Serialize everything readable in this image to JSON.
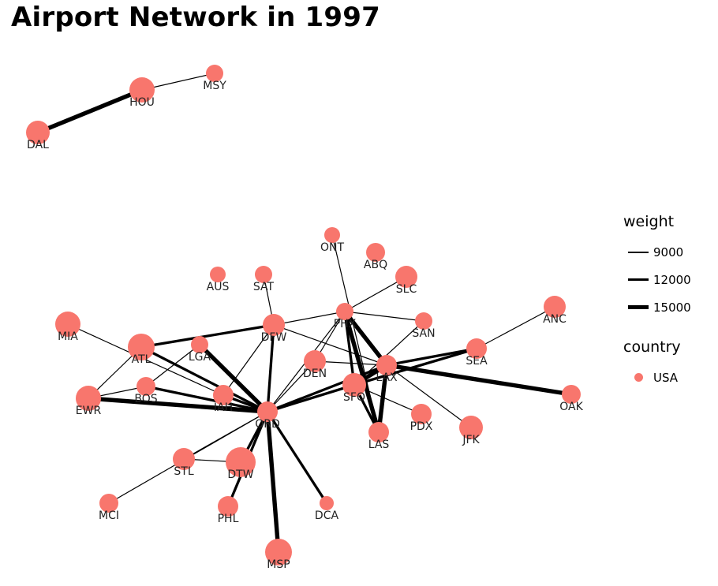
{
  "title": "Airport Network in 1997",
  "colors": {
    "node": "#f8766d",
    "edge": "#000000"
  },
  "legend": {
    "weight_title": "weight",
    "weight_items": [
      {
        "label": "9000",
        "value": 9000
      },
      {
        "label": "12000",
        "value": 12000
      },
      {
        "label": "15000",
        "value": 15000
      }
    ],
    "country_title": "country",
    "country_items": [
      {
        "label": "USA",
        "color": "#f8766d"
      }
    ]
  },
  "network": {
    "nodes": [
      "HOU",
      "MSY",
      "DAL",
      "ONT",
      "ABQ",
      "SLC",
      "AUS",
      "SAT",
      "PHX",
      "ANC",
      "MIA",
      "DFW",
      "SAN",
      "ATL",
      "LGA",
      "SEA",
      "DEN",
      "LAX",
      "BOS",
      "SFO",
      "OAK",
      "EWR",
      "IAH",
      "PDX",
      "ORD",
      "JFK",
      "LAS",
      "STL",
      "DTW",
      "MCI",
      "PHL",
      "DCA",
      "MSP"
    ],
    "edges": [
      {
        "source": "DAL",
        "target": "HOU",
        "weight": 15000
      },
      {
        "source": "HOU",
        "target": "MSY",
        "weight": 9000
      },
      {
        "source": "ONT",
        "target": "LAS",
        "weight": 9000
      },
      {
        "source": "SLC",
        "target": "PHX",
        "weight": 9000
      },
      {
        "source": "SAT",
        "target": "DFW",
        "weight": 9000
      },
      {
        "source": "PHX",
        "target": "SAN",
        "weight": 9000
      },
      {
        "source": "PHX",
        "target": "LAX",
        "weight": 15000
      },
      {
        "source": "PHX",
        "target": "LAS",
        "weight": 15000
      },
      {
        "source": "PHX",
        "target": "SFO",
        "weight": 12000
      },
      {
        "source": "PHX",
        "target": "DFW",
        "weight": 9000
      },
      {
        "source": "PHX",
        "target": "DEN",
        "weight": 9000
      },
      {
        "source": "PHX",
        "target": "ORD",
        "weight": 9000
      },
      {
        "source": "ANC",
        "target": "SEA",
        "weight": 9000
      },
      {
        "source": "MIA",
        "target": "IAH",
        "weight": 9000
      },
      {
        "source": "DFW",
        "target": "ATL",
        "weight": 12000
      },
      {
        "source": "DFW",
        "target": "LAX",
        "weight": 9000
      },
      {
        "source": "DFW",
        "target": "ORD",
        "weight": 12000
      },
      {
        "source": "DFW",
        "target": "IAH",
        "weight": 9000
      },
      {
        "source": "SAN",
        "target": "SFO",
        "weight": 9000
      },
      {
        "source": "ATL",
        "target": "ORD",
        "weight": 12000
      },
      {
        "source": "ATL",
        "target": "EWR",
        "weight": 9000
      },
      {
        "source": "LGA",
        "target": "ORD",
        "weight": 15000
      },
      {
        "source": "LGA",
        "target": "BOS",
        "weight": 9000
      },
      {
        "source": "SEA",
        "target": "LAX",
        "weight": 12000
      },
      {
        "source": "SEA",
        "target": "SFO",
        "weight": 12000
      },
      {
        "source": "SEA",
        "target": "ORD",
        "weight": 9000
      },
      {
        "source": "DEN",
        "target": "LAX",
        "weight": 9000
      },
      {
        "source": "DEN",
        "target": "ORD",
        "weight": 9000
      },
      {
        "source": "LAX",
        "target": "SFO",
        "weight": 15000
      },
      {
        "source": "LAX",
        "target": "OAK",
        "weight": 15000
      },
      {
        "source": "LAX",
        "target": "LAS",
        "weight": 15000
      },
      {
        "source": "LAX",
        "target": "ORD",
        "weight": 12000
      },
      {
        "source": "LAX",
        "target": "JFK",
        "weight": 9000
      },
      {
        "source": "BOS",
        "target": "ORD",
        "weight": 12000
      },
      {
        "source": "SFO",
        "target": "LAS",
        "weight": 12000
      },
      {
        "source": "SFO",
        "target": "PDX",
        "weight": 9000
      },
      {
        "source": "SFO",
        "target": "ORD",
        "weight": 12000
      },
      {
        "source": "EWR",
        "target": "ORD",
        "weight": 15000
      },
      {
        "source": "EWR",
        "target": "BOS",
        "weight": 9000
      },
      {
        "source": "IAH",
        "target": "ORD",
        "weight": 12000
      },
      {
        "source": "ORD",
        "target": "STL",
        "weight": 9000
      },
      {
        "source": "ORD",
        "target": "DTW",
        "weight": 12000
      },
      {
        "source": "ORD",
        "target": "MCI",
        "weight": 9000
      },
      {
        "source": "ORD",
        "target": "PHL",
        "weight": 12000
      },
      {
        "source": "ORD",
        "target": "DCA",
        "weight": 12000
      },
      {
        "source": "ORD",
        "target": "MSP",
        "weight": 15000
      },
      {
        "source": "STL",
        "target": "DTW",
        "weight": 9000
      }
    ]
  }
}
